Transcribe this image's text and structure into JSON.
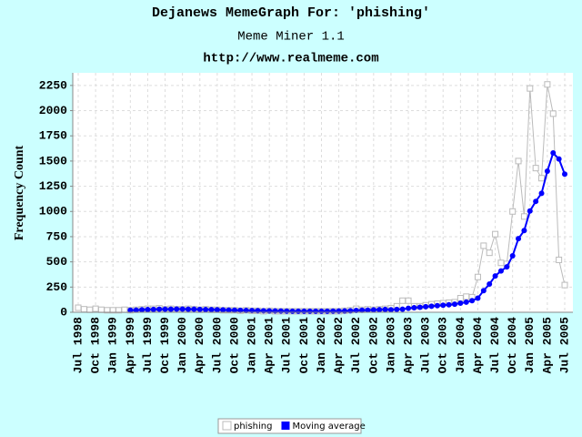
{
  "chart_data": {
    "type": "line",
    "title": "Dejanews MemeGraph For: 'phishing'",
    "subtitle": "Meme Miner 1.1",
    "source": "http://www.realmeme.com",
    "y_label": "Frequency Count",
    "categories": [
      "Jul 1998",
      null,
      null,
      "Oct 1998",
      null,
      null,
      "Jan 1999",
      null,
      null,
      "Apr 1999",
      null,
      null,
      "Jul 1999",
      null,
      null,
      "Oct 1999",
      null,
      null,
      "Jan 2000",
      null,
      null,
      "Apr 2000",
      null,
      null,
      "Jul 2000",
      null,
      null,
      "Oct 2000",
      null,
      null,
      "Jan 2001",
      null,
      null,
      "Apr 2001",
      null,
      null,
      "Jul 2001",
      null,
      null,
      "Oct 2001",
      null,
      null,
      "Jan 2002",
      null,
      null,
      "Apr 2002",
      null,
      null,
      "Jul 2002",
      null,
      null,
      "Oct 2002",
      null,
      null,
      "Jan 2003",
      null,
      null,
      "Apr 2003",
      null,
      null,
      "Jul 2003",
      null,
      null,
      "Oct 2003",
      null,
      null,
      "Jan 2004",
      null,
      null,
      "Apr 2004",
      null,
      null,
      "Jul 2004",
      null,
      null,
      "Oct 2004",
      null,
      null,
      "Jan 2005",
      null,
      null,
      "Apr 2005",
      null,
      null,
      "Jul 2005"
    ],
    "series": [
      {
        "name": "phishing",
        "color": "#bbbbbb",
        "marker": "square",
        "values": [
          45,
          30,
          25,
          35,
          25,
          20,
          20,
          20,
          25,
          20,
          25,
          30,
          35,
          35,
          40,
          30,
          35,
          30,
          30,
          35,
          30,
          25,
          30,
          25,
          25,
          20,
          20,
          20,
          15,
          20,
          15,
          15,
          10,
          15,
          10,
          10,
          10,
          10,
          10,
          10,
          10,
          10,
          10,
          10,
          10,
          10,
          15,
          20,
          35,
          25,
          30,
          25,
          30,
          35,
          40,
          60,
          115,
          115,
          60,
          60,
          70,
          80,
          85,
          90,
          95,
          100,
          140,
          155,
          150,
          350,
          660,
          590,
          775,
          490,
          480,
          1000,
          1500,
          950,
          2220,
          1430,
          1330,
          2260,
          1970,
          520,
          270
        ]
      },
      {
        "name": "Moving average",
        "color": "#0000ff",
        "marker": "circle",
        "values": [
          null,
          null,
          null,
          null,
          null,
          null,
          null,
          null,
          null,
          20,
          22,
          25,
          27,
          28,
          30,
          30,
          30,
          32,
          32,
          30,
          30,
          28,
          27,
          26,
          25,
          24,
          22,
          20,
          19,
          18,
          17,
          16,
          15,
          14,
          13,
          12,
          11,
          10,
          10,
          10,
          10,
          10,
          10,
          10,
          11,
          12,
          13,
          15,
          18,
          20,
          22,
          24,
          26,
          28,
          25,
          28,
          30,
          40,
          45,
          50,
          55,
          60,
          65,
          70,
          75,
          80,
          90,
          100,
          115,
          140,
          215,
          280,
          360,
          410,
          450,
          560,
          730,
          810,
          1005,
          1100,
          1180,
          1400,
          1580,
          1520,
          1370
        ]
      }
    ],
    "ylim": [
      0,
      2375
    ],
    "yticks": [
      0,
      250,
      500,
      750,
      1000,
      1250,
      1500,
      1750,
      2000,
      2250
    ],
    "grid": true,
    "legend": "bottom"
  }
}
